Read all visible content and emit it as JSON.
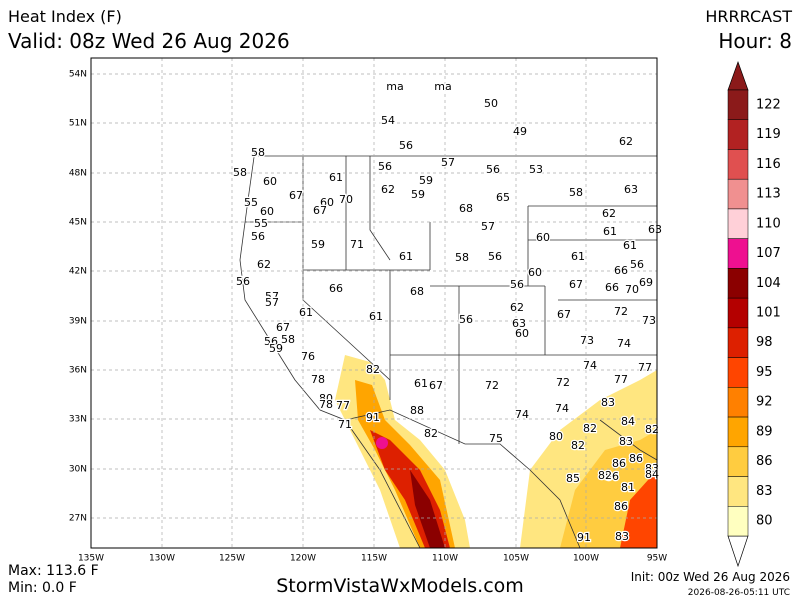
{
  "header": {
    "title": "Heat Index (F)",
    "valid": "Valid: 08z Wed 26 Aug 2026",
    "model": "HRRRCAST",
    "hour": "Hour: 8"
  },
  "footer": {
    "max": "Max: 113.6 F",
    "min": "Min: 0.0 F",
    "site": "StormVistaWxModels.com",
    "init": "Init: 00z Wed 26 Aug 2026",
    "stamp": "2026-08-26-05:11 UTC"
  },
  "lat_labels": [
    "54N",
    "51N",
    "48N",
    "45N",
    "42N",
    "39N",
    "36N",
    "33N",
    "30N",
    "27N"
  ],
  "lon_labels": [
    "135W",
    "130W",
    "125W",
    "120W",
    "115W",
    "110W",
    "105W",
    "100W",
    "95W"
  ],
  "colorbar": {
    "labels": [
      122,
      119,
      116,
      113,
      110,
      107,
      104,
      101,
      98,
      95,
      92,
      89,
      86,
      83,
      80
    ],
    "colors": [
      "#8b1a1a",
      "#b22222",
      "#e05050",
      "#f09090",
      "#ffd0d8",
      "#ee1090",
      "#8b0000",
      "#b40000",
      "#dd2000",
      "#ff4500",
      "#ff8000",
      "#ffa500",
      "#ffcc40",
      "#ffe680",
      "#ffffc0"
    ]
  },
  "stations": [
    "ma",
    "ma",
    50,
    54,
    49,
    62,
    56,
    58,
    56,
    57,
    56,
    53,
    58,
    60,
    61,
    62,
    59,
    59,
    58,
    63,
    67,
    60,
    70,
    67,
    55,
    60,
    55,
    68,
    65,
    62,
    57,
    56,
    59,
    71,
    60,
    61,
    61,
    63,
    61,
    58,
    56,
    61,
    62,
    60,
    66,
    56,
    56,
    66,
    68,
    56,
    67,
    66,
    70,
    69,
    57,
    57,
    61,
    61,
    56,
    62,
    67,
    72,
    73,
    63,
    60,
    67,
    58,
    56,
    59,
    73,
    74,
    76,
    82,
    74,
    77,
    78,
    61,
    67,
    72,
    72,
    77,
    80,
    78,
    77,
    88,
    74,
    83,
    91,
    84,
    71,
    74,
    82,
    82,
    82,
    75,
    80,
    83,
    82,
    86,
    86,
    86,
    82,
    83,
    84,
    85,
    81,
    86,
    91,
    83
  ]
}
